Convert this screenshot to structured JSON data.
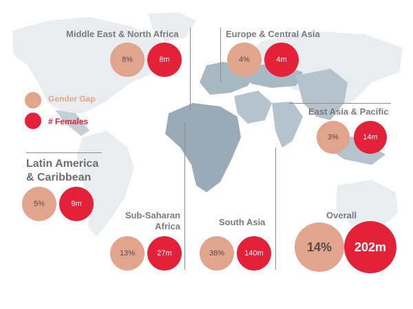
{
  "colors": {
    "gender_gap": "#e0a58c",
    "females": "#e3223a",
    "map_land": "#e8ecef",
    "map_highlight": "#9eafbb",
    "label_text": "#7a7a7a"
  },
  "legend": {
    "gender_gap_label": "Gender Gap",
    "females_label": "# Females"
  },
  "regions": {
    "mena": {
      "name": "Middle  East & North Africa",
      "gender_gap": "8%",
      "females": "8m"
    },
    "eca": {
      "name": "Europe & Central Asia",
      "gender_gap": "4%",
      "females": "4m"
    },
    "eap": {
      "name": "East Asia & Pacific",
      "gender_gap": "3%",
      "females": "14m"
    },
    "lac": {
      "name_line1": "Latin America",
      "name_line2": "& Caribbean",
      "gender_gap": "5%",
      "females": "9m"
    },
    "ssa": {
      "name_line1": "Sub-Saharan",
      "name_line2": "Africa",
      "gender_gap": "13%",
      "females": "27m"
    },
    "sa": {
      "name": "South Asia",
      "gender_gap": "38%",
      "females": "140m"
    },
    "overall": {
      "name": "Overall",
      "gender_gap": "14%",
      "females": "202m"
    }
  }
}
